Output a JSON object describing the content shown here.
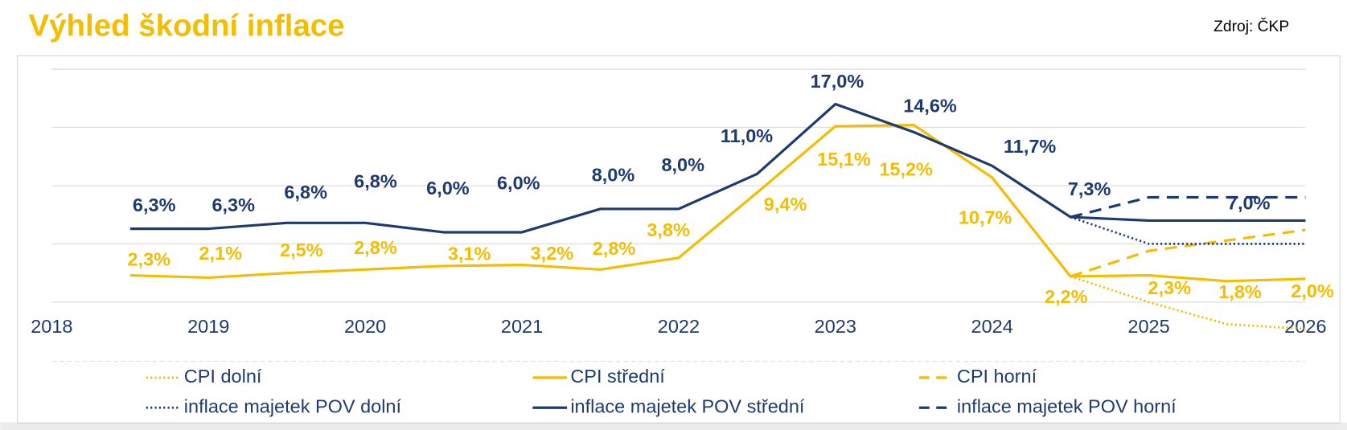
{
  "chart_data": {
    "type": "line",
    "title": "Výhled škodní inflace",
    "source": "Zdroj: ČKP",
    "x": [
      2018.5,
      2019,
      2019.5,
      2020,
      2020.5,
      2021,
      2021.5,
      2022,
      2022.5,
      2023,
      2023.5,
      2024,
      2024.5,
      2025,
      2025.5,
      2026
    ],
    "xlim": [
      2018,
      2026
    ],
    "xticks": [
      2018,
      2019,
      2020,
      2021,
      2022,
      2023,
      2024,
      2025,
      2026
    ],
    "ylim": [
      0,
      20
    ],
    "yticks": [
      0,
      5,
      10,
      15,
      20
    ],
    "grid": true,
    "series": [
      {
        "name": "CPI dolní",
        "color": "#f5bd00",
        "style": "dotted",
        "values": [
          null,
          null,
          null,
          null,
          null,
          null,
          null,
          null,
          null,
          null,
          null,
          null,
          2.2,
          0.0,
          -1.9,
          -2.3
        ]
      },
      {
        "name": "CPI střední",
        "color": "#f5bd00",
        "style": "solid",
        "values": [
          2.3,
          2.1,
          2.5,
          2.8,
          3.1,
          3.2,
          2.8,
          3.8,
          9.4,
          15.1,
          15.2,
          10.7,
          2.2,
          2.3,
          1.8,
          2.0
        ],
        "value_labels": [
          "2,3%",
          "2,1%",
          "2,5%",
          "2,8%",
          "3,1%",
          "3,2%",
          "2,8%",
          "3,8%",
          "9,4%",
          "15,1%",
          "15,2%",
          "10,7%",
          "2,2%",
          "2,3%",
          "1,8%",
          "2,0%"
        ]
      },
      {
        "name": "CPI horní",
        "color": "#f5bd00",
        "style": "dashed",
        "values": [
          null,
          null,
          null,
          null,
          null,
          null,
          null,
          null,
          null,
          null,
          null,
          null,
          2.2,
          4.4,
          5.3,
          6.2
        ]
      },
      {
        "name": "inflace majetek POV dolní",
        "color": "#1f3a6e",
        "style": "dotted",
        "values": [
          null,
          null,
          null,
          null,
          null,
          null,
          null,
          null,
          null,
          null,
          null,
          null,
          7.3,
          5.0,
          5.0,
          5.0
        ]
      },
      {
        "name": "inflace majetek POV střední",
        "color": "#1f3a6e",
        "style": "solid",
        "values": [
          6.3,
          6.3,
          6.8,
          6.8,
          6.0,
          6.0,
          8.0,
          8.0,
          11.0,
          17.0,
          14.6,
          11.7,
          7.3,
          7.0,
          7.0,
          7.0
        ],
        "value_labels": [
          "6,3%",
          "6,3%",
          "6,8%",
          "6,8%",
          "6,0%",
          "6,0%",
          "8,0%",
          "8,0%",
          "11,0%",
          "17,0%",
          "14,6%",
          "11,7%",
          "7,3%",
          null,
          "7,0%",
          null
        ]
      },
      {
        "name": "inflace majetek POV horní",
        "color": "#1f3a6e",
        "style": "dashed",
        "values": [
          null,
          null,
          null,
          null,
          null,
          null,
          null,
          null,
          null,
          null,
          null,
          null,
          7.3,
          9.0,
          9.0,
          9.0
        ]
      }
    ]
  }
}
